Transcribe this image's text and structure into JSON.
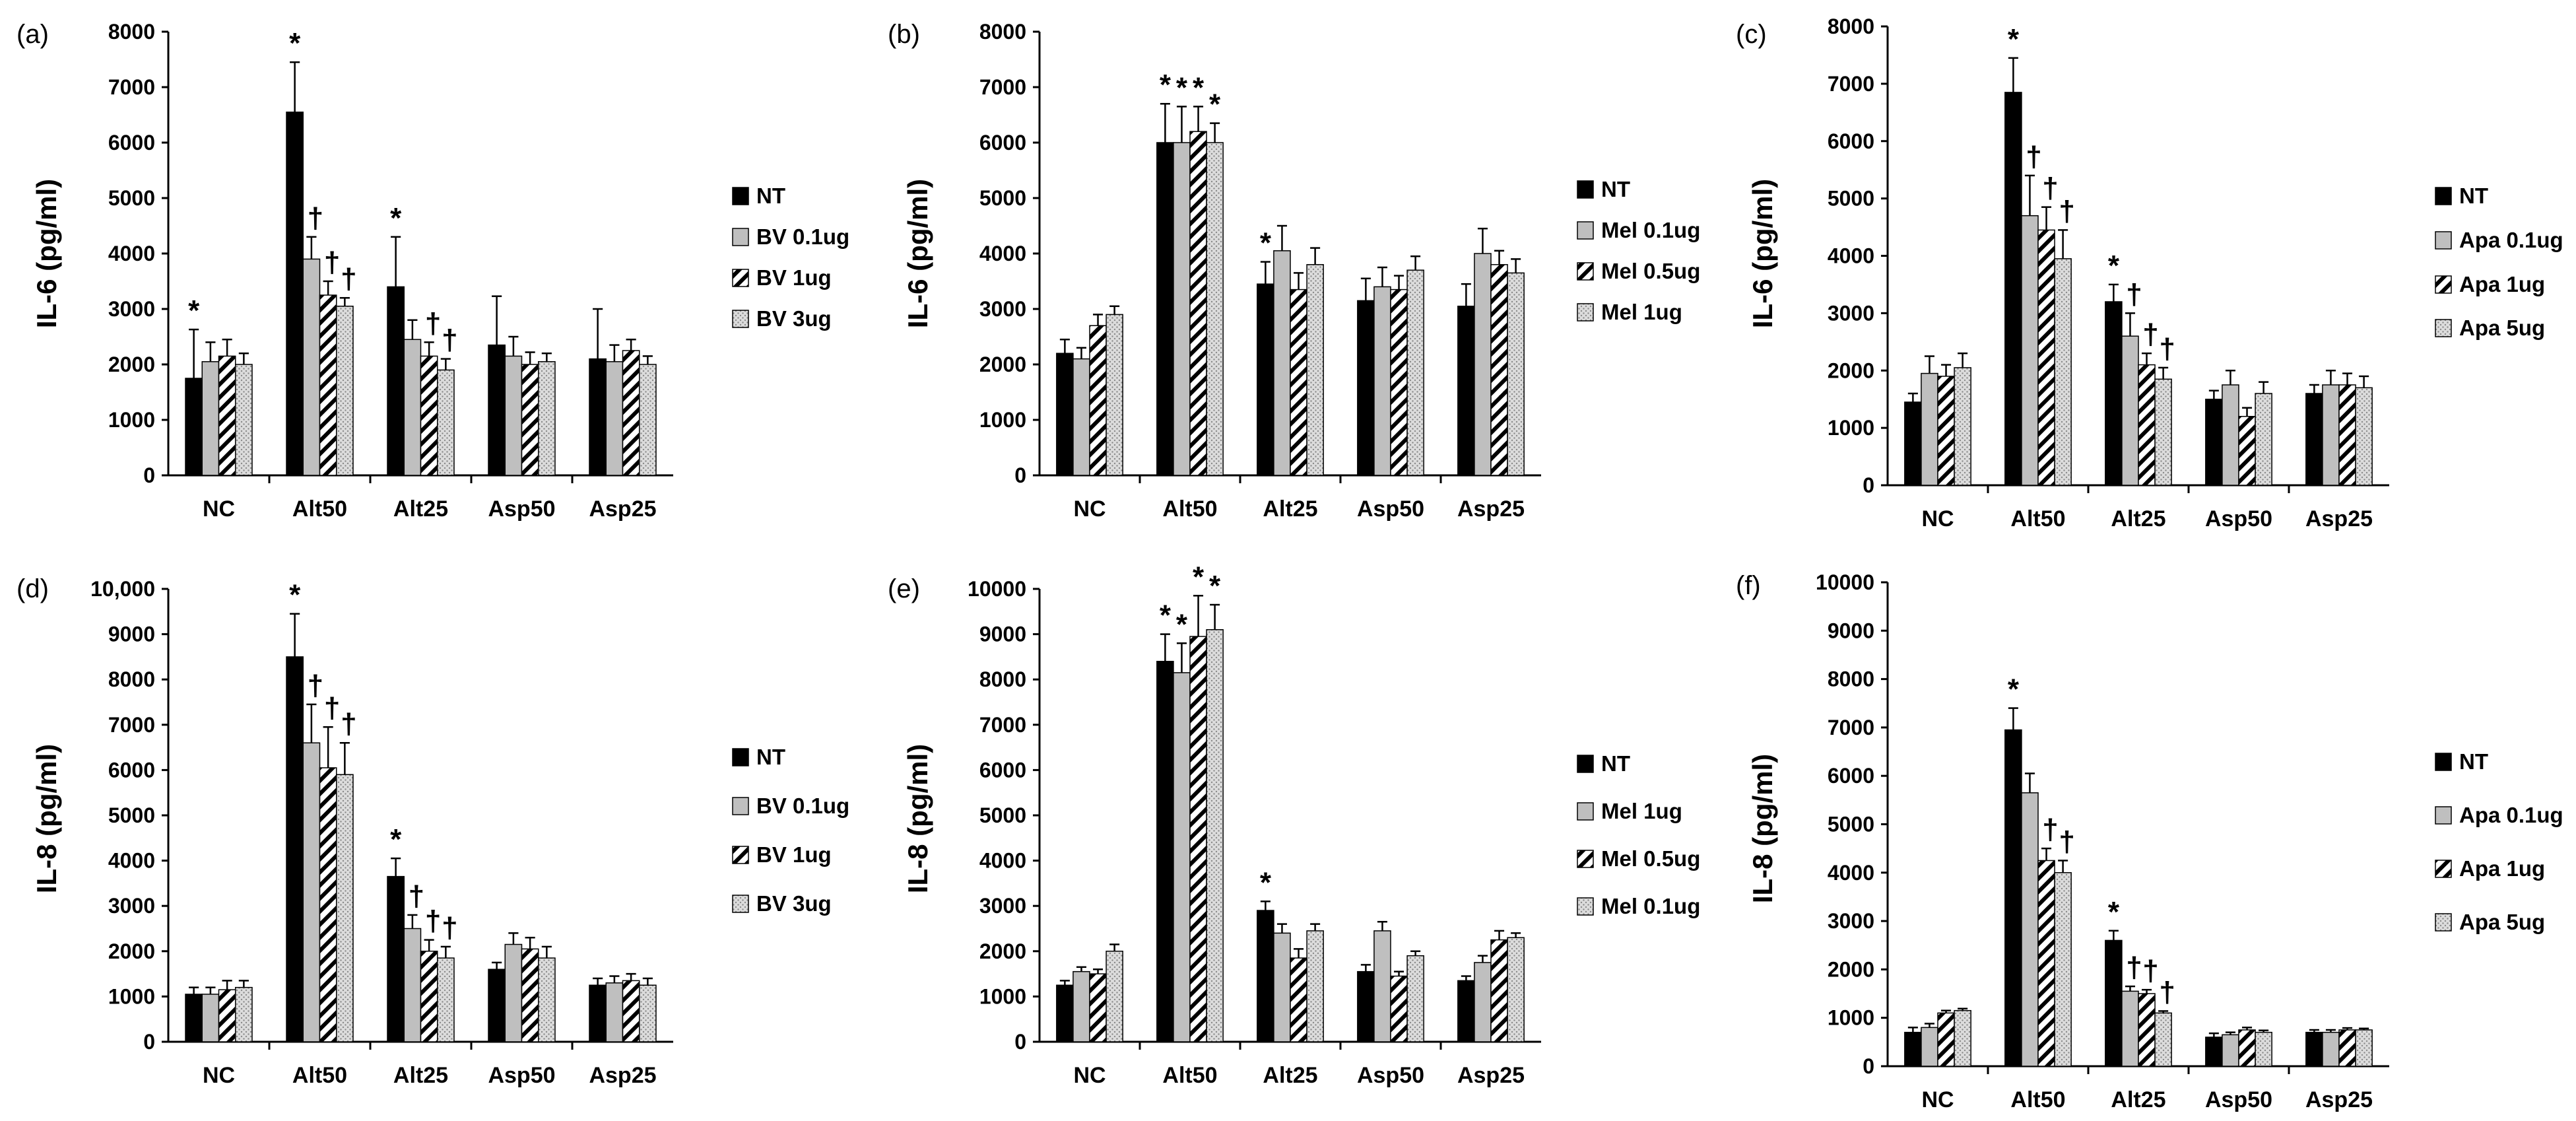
{
  "chart_data": [
    {
      "panel_label": "(a)",
      "type": "bar",
      "ylabel": "IL-6 (pg/ml)",
      "ylim": [
        0,
        8000
      ],
      "yticks": [
        "0",
        "1000",
        "2000",
        "3000",
        "4000",
        "5000",
        "6000",
        "7000",
        "8000"
      ],
      "categories": [
        "NC",
        "Alt50",
        "Alt25",
        "Asp50",
        "Asp25"
      ],
      "series": [
        {
          "name": "NT",
          "values": [
            1750,
            6550,
            3400,
            2350,
            2100
          ],
          "errors": [
            880,
            900,
            900,
            880,
            900
          ]
        },
        {
          "name": "BV 0.1ug",
          "values": [
            2050,
            3900,
            2450,
            2150,
            2050
          ],
          "errors": [
            350,
            400,
            350,
            350,
            300
          ]
        },
        {
          "name": "BV 1ug",
          "values": [
            2150,
            3250,
            2150,
            2000,
            2250
          ],
          "errors": [
            300,
            250,
            250,
            220,
            200
          ]
        },
        {
          "name": "BV 3ug",
          "values": [
            2000,
            3050,
            1900,
            2050,
            2000
          ],
          "errors": [
            200,
            150,
            200,
            150,
            150
          ]
        }
      ],
      "annotations": [
        [
          "*",
          "",
          "",
          ""
        ],
        [
          "*",
          "†",
          "†",
          "†"
        ],
        [
          "*",
          "",
          "†",
          "†"
        ],
        [
          "",
          "",
          "",
          ""
        ],
        [
          "",
          "",
          "",
          ""
        ]
      ]
    },
    {
      "panel_label": "(b)",
      "type": "bar",
      "ylabel": "IL-6 (pg/ml)",
      "ylim": [
        0,
        8000
      ],
      "yticks": [
        "0",
        "1000",
        "2000",
        "3000",
        "4000",
        "5000",
        "6000",
        "7000",
        "8000"
      ],
      "categories": [
        "NC",
        "Alt50",
        "Alt25",
        "Asp50",
        "Asp25"
      ],
      "series": [
        {
          "name": "NT",
          "values": [
            2200,
            6000,
            3450,
            3150,
            3050
          ],
          "errors": [
            250,
            700,
            400,
            400,
            400
          ]
        },
        {
          "name": "Mel 0.1ug",
          "values": [
            2100,
            6000,
            4050,
            3400,
            4000
          ],
          "errors": [
            200,
            650,
            450,
            350,
            450
          ]
        },
        {
          "name": "Mel 0.5ug",
          "values": [
            2700,
            6200,
            3350,
            3350,
            3800
          ],
          "errors": [
            200,
            450,
            300,
            250,
            250
          ]
        },
        {
          "name": "Mel 1ug",
          "values": [
            2900,
            6000,
            3800,
            3700,
            3650
          ],
          "errors": [
            150,
            350,
            300,
            250,
            250
          ]
        }
      ],
      "annotations": [
        [
          "",
          "",
          "",
          ""
        ],
        [
          "*",
          "*",
          "*",
          "*"
        ],
        [
          "*",
          "",
          "",
          ""
        ],
        [
          "",
          "",
          "",
          ""
        ],
        [
          "",
          "",
          "",
          ""
        ]
      ]
    },
    {
      "panel_label": "(c)",
      "type": "bar",
      "ylabel": "IL-6 (pg/ml)",
      "ylim": [
        0,
        8000
      ],
      "yticks": [
        "0",
        "1000",
        "2000",
        "3000",
        "4000",
        "5000",
        "6000",
        "7000",
        "8000"
      ],
      "categories": [
        "NC",
        "Alt50",
        "Alt25",
        "Asp50",
        "Asp25"
      ],
      "series": [
        {
          "name": "NT",
          "values": [
            1450,
            6850,
            3200,
            1500,
            1600
          ],
          "errors": [
            150,
            600,
            300,
            150,
            150
          ]
        },
        {
          "name": "Apa 0.1ug",
          "values": [
            1950,
            4700,
            2600,
            1750,
            1750
          ],
          "errors": [
            300,
            700,
            400,
            250,
            250
          ]
        },
        {
          "name": "Apa 1ug",
          "values": [
            1900,
            4450,
            2100,
            1200,
            1750
          ],
          "errors": [
            200,
            400,
            200,
            150,
            200
          ]
        },
        {
          "name": "Apa 5ug",
          "values": [
            2050,
            3950,
            1850,
            1600,
            1700
          ],
          "errors": [
            250,
            500,
            200,
            200,
            200
          ]
        }
      ],
      "annotations": [
        [
          "",
          "",
          "",
          ""
        ],
        [
          "*",
          "†",
          "†",
          "†"
        ],
        [
          "*",
          "†",
          "†",
          "†"
        ],
        [
          "",
          "",
          "",
          ""
        ],
        [
          "",
          "",
          "",
          ""
        ]
      ]
    },
    {
      "panel_label": "(d)",
      "type": "bar",
      "ylabel": "IL-8 (pg/ml)",
      "ylim": [
        0,
        10000
      ],
      "yticks": [
        "0",
        "1000",
        "2000",
        "3000",
        "4000",
        "5000",
        "6000",
        "7000",
        "8000",
        "9000",
        "10,000"
      ],
      "categories": [
        "NC",
        "Alt50",
        "Alt25",
        "Asp50",
        "Asp25"
      ],
      "series": [
        {
          "name": "NT",
          "values": [
            1050,
            8500,
            3650,
            1600,
            1250
          ],
          "errors": [
            150,
            950,
            400,
            150,
            150
          ]
        },
        {
          "name": "BV 0.1ug",
          "values": [
            1050,
            6600,
            2500,
            2150,
            1300
          ],
          "errors": [
            150,
            850,
            300,
            250,
            150
          ]
        },
        {
          "name": "BV 1ug",
          "values": [
            1150,
            6050,
            2000,
            2050,
            1350
          ],
          "errors": [
            200,
            900,
            250,
            250,
            150
          ]
        },
        {
          "name": "BV 3ug",
          "values": [
            1200,
            5900,
            1850,
            1850,
            1250
          ],
          "errors": [
            150,
            700,
            250,
            250,
            150
          ]
        }
      ],
      "annotations": [
        [
          "",
          "",
          "",
          ""
        ],
        [
          "*",
          "†",
          "†",
          "†"
        ],
        [
          "*",
          "†",
          "†",
          "†"
        ],
        [
          "",
          "",
          "",
          ""
        ],
        [
          "",
          "",
          "",
          ""
        ]
      ]
    },
    {
      "panel_label": "(e)",
      "type": "bar",
      "ylabel": "IL-8 (pg/ml)",
      "ylim": [
        0,
        10000
      ],
      "yticks": [
        "0",
        "1000",
        "2000",
        "3000",
        "4000",
        "5000",
        "6000",
        "7000",
        "8000",
        "9000",
        "10000"
      ],
      "categories": [
        "NC",
        "Alt50",
        "Alt25",
        "Asp50",
        "Asp25"
      ],
      "series": [
        {
          "name": "NT",
          "values": [
            1250,
            8400,
            2900,
            1550,
            1350
          ],
          "errors": [
            100,
            600,
            200,
            150,
            100
          ]
        },
        {
          "name": "Mel 1ug",
          "values": [
            1550,
            8150,
            2400,
            2450,
            1750
          ],
          "errors": [
            100,
            650,
            200,
            200,
            150
          ]
        },
        {
          "name": "Mel 0.5ug",
          "values": [
            1500,
            8950,
            1850,
            1450,
            2250
          ],
          "errors": [
            100,
            900,
            200,
            100,
            200
          ]
        },
        {
          "name": "Mel 0.1ug",
          "values": [
            2000,
            9100,
            2450,
            1900,
            2300
          ],
          "errors": [
            150,
            550,
            150,
            100,
            100
          ]
        }
      ],
      "annotations": [
        [
          "",
          "",
          "",
          ""
        ],
        [
          "*",
          "*",
          "*",
          "*"
        ],
        [
          "*",
          "",
          "",
          ""
        ],
        [
          "",
          "",
          "",
          ""
        ],
        [
          "",
          "",
          "",
          ""
        ]
      ]
    },
    {
      "panel_label": "(f)",
      "type": "bar",
      "ylabel": "IL-8 (pg/ml)",
      "ylim": [
        0,
        10000
      ],
      "yticks": [
        "0",
        "1000",
        "2000",
        "3000",
        "4000",
        "5000",
        "6000",
        "7000",
        "8000",
        "9000",
        "10000"
      ],
      "categories": [
        "NC",
        "Alt50",
        "Alt25",
        "Asp50",
        "Asp25"
      ],
      "series": [
        {
          "name": "NT",
          "values": [
            700,
            6950,
            2600,
            600,
            700
          ],
          "errors": [
            100,
            450,
            200,
            80,
            50
          ]
        },
        {
          "name": "Apa 0.1ug",
          "values": [
            800,
            5650,
            1550,
            650,
            700
          ],
          "errors": [
            80,
            400,
            100,
            50,
            50
          ]
        },
        {
          "name": "Apa 1ug",
          "values": [
            1100,
            4250,
            1500,
            750,
            750
          ],
          "errors": [
            50,
            250,
            80,
            50,
            40
          ]
        },
        {
          "name": "Apa 5ug",
          "values": [
            1150,
            4000,
            1100,
            700,
            750
          ],
          "errors": [
            40,
            250,
            40,
            40,
            30
          ]
        }
      ],
      "annotations": [
        [
          "",
          "",
          "",
          ""
        ],
        [
          "*",
          "",
          "†",
          "†"
        ],
        [
          "*",
          "†",
          "†",
          "†"
        ],
        [
          "",
          "",
          "",
          ""
        ],
        [
          "",
          "",
          "",
          ""
        ]
      ]
    }
  ]
}
